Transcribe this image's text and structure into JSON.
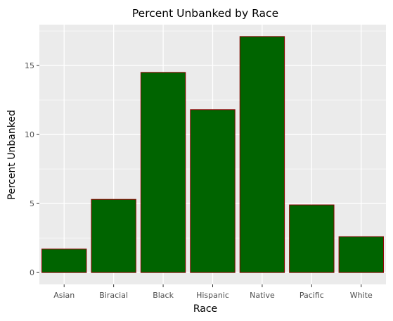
{
  "chart_data": {
    "type": "bar",
    "title": "Percent Unbanked by Race",
    "xlabel": "Race",
    "ylabel": "Percent Unbanked",
    "categories": [
      "Asian",
      "Biracial",
      "Black",
      "Hispanic",
      "Native",
      "Pacific",
      "White"
    ],
    "values": [
      1.7,
      5.3,
      14.5,
      11.8,
      17.1,
      4.9,
      2.6
    ],
    "yticks": [
      0,
      5,
      10,
      15
    ],
    "ylim": [
      -0.86,
      17.96
    ],
    "grid": true,
    "colors": {
      "bar_fill": "#006400",
      "bar_edge": "#8b0000",
      "panel_background": "#ebebeb",
      "grid": "#ffffff",
      "tick_label": "#4d4d4d"
    }
  }
}
